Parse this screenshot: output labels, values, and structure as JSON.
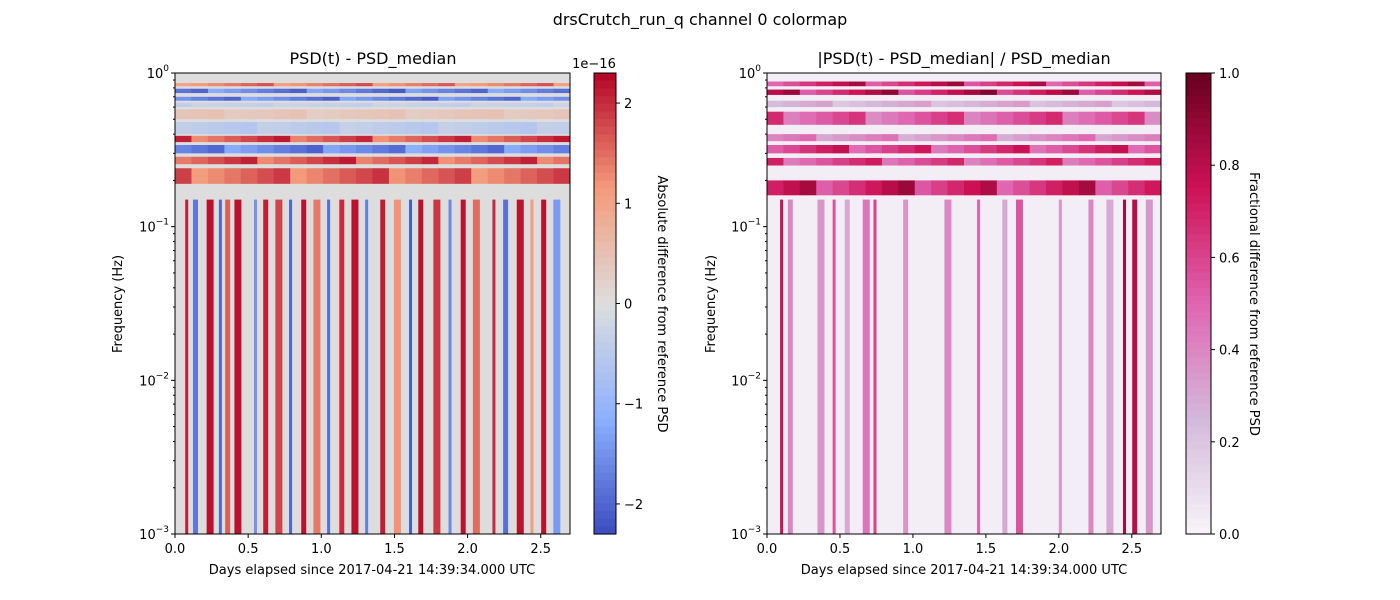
{
  "figure": {
    "suptitle": "drsCrutch_run_q channel 0 colormap"
  },
  "chart_data": [
    {
      "type": "heatmap",
      "title": "PSD(t) - PSD_median",
      "xlabel": "Days elapsed since 2017-04-21 14:39:34.000 UTC",
      "ylabel": "Frequency (Hz)",
      "xlim": [
        0.0,
        2.7
      ],
      "ylim": [
        0.001,
        1.0
      ],
      "yscale": "log",
      "xticks": [
        "0.0",
        "0.5",
        "1.0",
        "1.5",
        "2.0",
        "2.5"
      ],
      "xtick_values": [
        0.0,
        0.5,
        1.0,
        1.5,
        2.0,
        2.5
      ],
      "yticks": [
        {
          "base": "10",
          "exp": "−3",
          "value": 0.001
        },
        {
          "base": "10",
          "exp": "−2",
          "value": 0.01
        },
        {
          "base": "10",
          "exp": "−1",
          "value": 0.1
        },
        {
          "base": "10",
          "exp": "0",
          "value": 1.0
        }
      ],
      "colormap": "coolwarm",
      "colorbar": {
        "label": "Absolute difference from reference PSD",
        "offset_text": "1e−16",
        "range": [
          -2.3,
          2.3
        ],
        "ticks": [
          "−2",
          "−1",
          "0",
          "1",
          "2"
        ],
        "tick_values": [
          -2,
          -1,
          0,
          1,
          2
        ]
      },
      "bands": [
        {
          "fmin": 0.82,
          "fmax": 0.86,
          "level": 1.8
        },
        {
          "fmin": 0.74,
          "fmax": 0.79,
          "level": -2.2
        },
        {
          "fmin": 0.66,
          "fmax": 0.7,
          "level": -2.2
        },
        {
          "fmin": 0.6,
          "fmax": 0.64,
          "level": -0.4
        },
        {
          "fmin": 0.5,
          "fmax": 0.58,
          "level": 0.5
        },
        {
          "fmin": 0.4,
          "fmax": 0.48,
          "level": -0.6
        },
        {
          "fmin": 0.355,
          "fmax": 0.39,
          "level": 2.2
        },
        {
          "fmin": 0.3,
          "fmax": 0.34,
          "level": -2.1
        },
        {
          "fmin": 0.255,
          "fmax": 0.285,
          "level": 2.2
        },
        {
          "fmin": 0.19,
          "fmax": 0.24,
          "level": 2.0
        }
      ],
      "stripes_x": [
        0.08,
        0.14,
        0.24,
        0.31,
        0.36,
        0.43,
        0.55,
        0.62,
        0.71,
        0.79,
        0.88,
        0.97,
        1.05,
        1.14,
        1.23,
        1.31,
        1.42,
        1.52,
        1.61,
        1.68,
        1.79,
        1.88,
        1.97,
        2.06,
        2.18,
        2.26,
        2.36,
        2.44,
        2.52,
        2.61
      ],
      "stripes_level": [
        2.1,
        -1.8,
        2.2,
        -2.0,
        1.6,
        2.2,
        -1.5,
        2.1,
        1.8,
        -2.0,
        2.2,
        1.4,
        -1.9,
        2.0,
        2.2,
        -1.7,
        2.1,
        1.2,
        -2.1,
        2.2,
        1.9,
        -1.6,
        2.2,
        1.5,
        2.0,
        -1.9,
        2.2,
        1.1,
        2.2,
        -1.4
      ]
    },
    {
      "type": "heatmap",
      "title": "|PSD(t) - PSD_median| / PSD_median",
      "xlabel": "Days elapsed since 2017-04-21 14:39:34.000 UTC",
      "ylabel": "Frequency (Hz)",
      "xlim": [
        0.0,
        2.7
      ],
      "ylim": [
        0.001,
        1.0
      ],
      "yscale": "log",
      "xticks": [
        "0.0",
        "0.5",
        "1.0",
        "1.5",
        "2.0",
        "2.5"
      ],
      "xtick_values": [
        0.0,
        0.5,
        1.0,
        1.5,
        2.0,
        2.5
      ],
      "yticks": [
        {
          "base": "10",
          "exp": "−3",
          "value": 0.001
        },
        {
          "base": "10",
          "exp": "−2",
          "value": 0.01
        },
        {
          "base": "10",
          "exp": "−1",
          "value": 0.1
        },
        {
          "base": "10",
          "exp": "0",
          "value": 1.0
        }
      ],
      "colormap": "PuRd",
      "colorbar": {
        "label": "Fractional difference from reference PSD",
        "range": [
          0.0,
          1.0
        ],
        "ticks": [
          "0.0",
          "0.2",
          "0.4",
          "0.6",
          "0.8",
          "1.0"
        ],
        "tick_values": [
          0.0,
          0.2,
          0.4,
          0.6,
          0.8,
          1.0
        ]
      },
      "bands": [
        {
          "fmin": 0.82,
          "fmax": 0.88,
          "level": 0.9
        },
        {
          "fmin": 0.72,
          "fmax": 0.78,
          "level": 0.95
        },
        {
          "fmin": 0.6,
          "fmax": 0.66,
          "level": 0.35
        },
        {
          "fmin": 0.46,
          "fmax": 0.56,
          "level": 0.7
        },
        {
          "fmin": 0.36,
          "fmax": 0.4,
          "level": 0.5
        },
        {
          "fmin": 0.3,
          "fmax": 0.34,
          "level": 0.8
        },
        {
          "fmin": 0.25,
          "fmax": 0.28,
          "level": 0.75
        },
        {
          "fmin": 0.16,
          "fmax": 0.2,
          "level": 0.9
        }
      ],
      "stripes_x": [
        0.1,
        0.16,
        0.37,
        0.46,
        0.55,
        0.68,
        0.74,
        0.95,
        1.24,
        1.45,
        1.63,
        1.73,
        2.01,
        2.22,
        2.35,
        2.45,
        2.52,
        2.62
      ],
      "stripes_level": [
        0.75,
        0.4,
        0.35,
        0.55,
        0.3,
        0.45,
        0.6,
        0.35,
        0.4,
        0.5,
        0.3,
        0.55,
        0.35,
        0.4,
        0.3,
        0.85,
        0.8,
        0.35
      ]
    }
  ]
}
